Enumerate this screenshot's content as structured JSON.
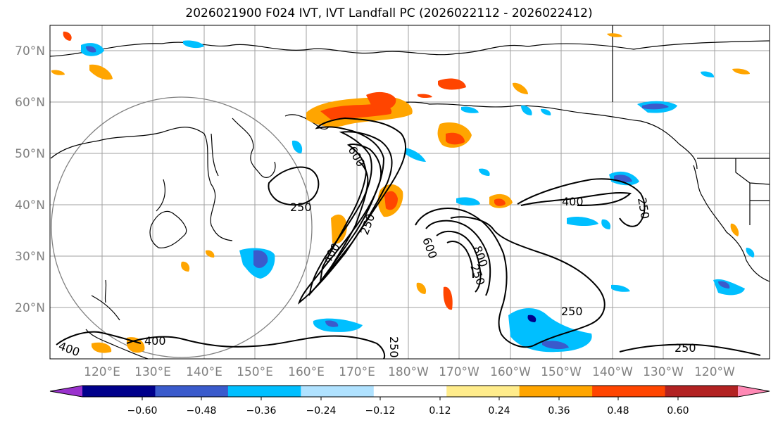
{
  "title": "2026021900 F024 IVT, IVT Landfall PC (2026022112 - 2026022412)",
  "lat_labels": [
    "70°N",
    "60°N",
    "50°N",
    "40°N",
    "30°N",
    "20°N"
  ],
  "lon_labels": [
    "120°E",
    "130°E",
    "140°E",
    "150°E",
    "160°E",
    "170°E",
    "180°W",
    "170°W",
    "160°W",
    "150°W",
    "140°W",
    "130°W",
    "120°W"
  ],
  "contour_labels": [
    "250",
    "600",
    "250",
    "400",
    "600",
    "800",
    "250",
    "400",
    "250",
    "250",
    "400",
    "250",
    "250"
  ],
  "colorbar": {
    "ticks": [
      "−0.60",
      "−0.48",
      "−0.36",
      "−0.24",
      "−0.12",
      "0.12",
      "0.24",
      "0.36",
      "0.48",
      "0.60"
    ],
    "colors": [
      "#9a32cd",
      "#00008b",
      "#3a5bcc",
      "#00bfff",
      "#b0e2ff",
      "#ffffff",
      "#ffec8b",
      "#ffa500",
      "#ff4500",
      "#b22222",
      "#ff89b5"
    ]
  }
}
